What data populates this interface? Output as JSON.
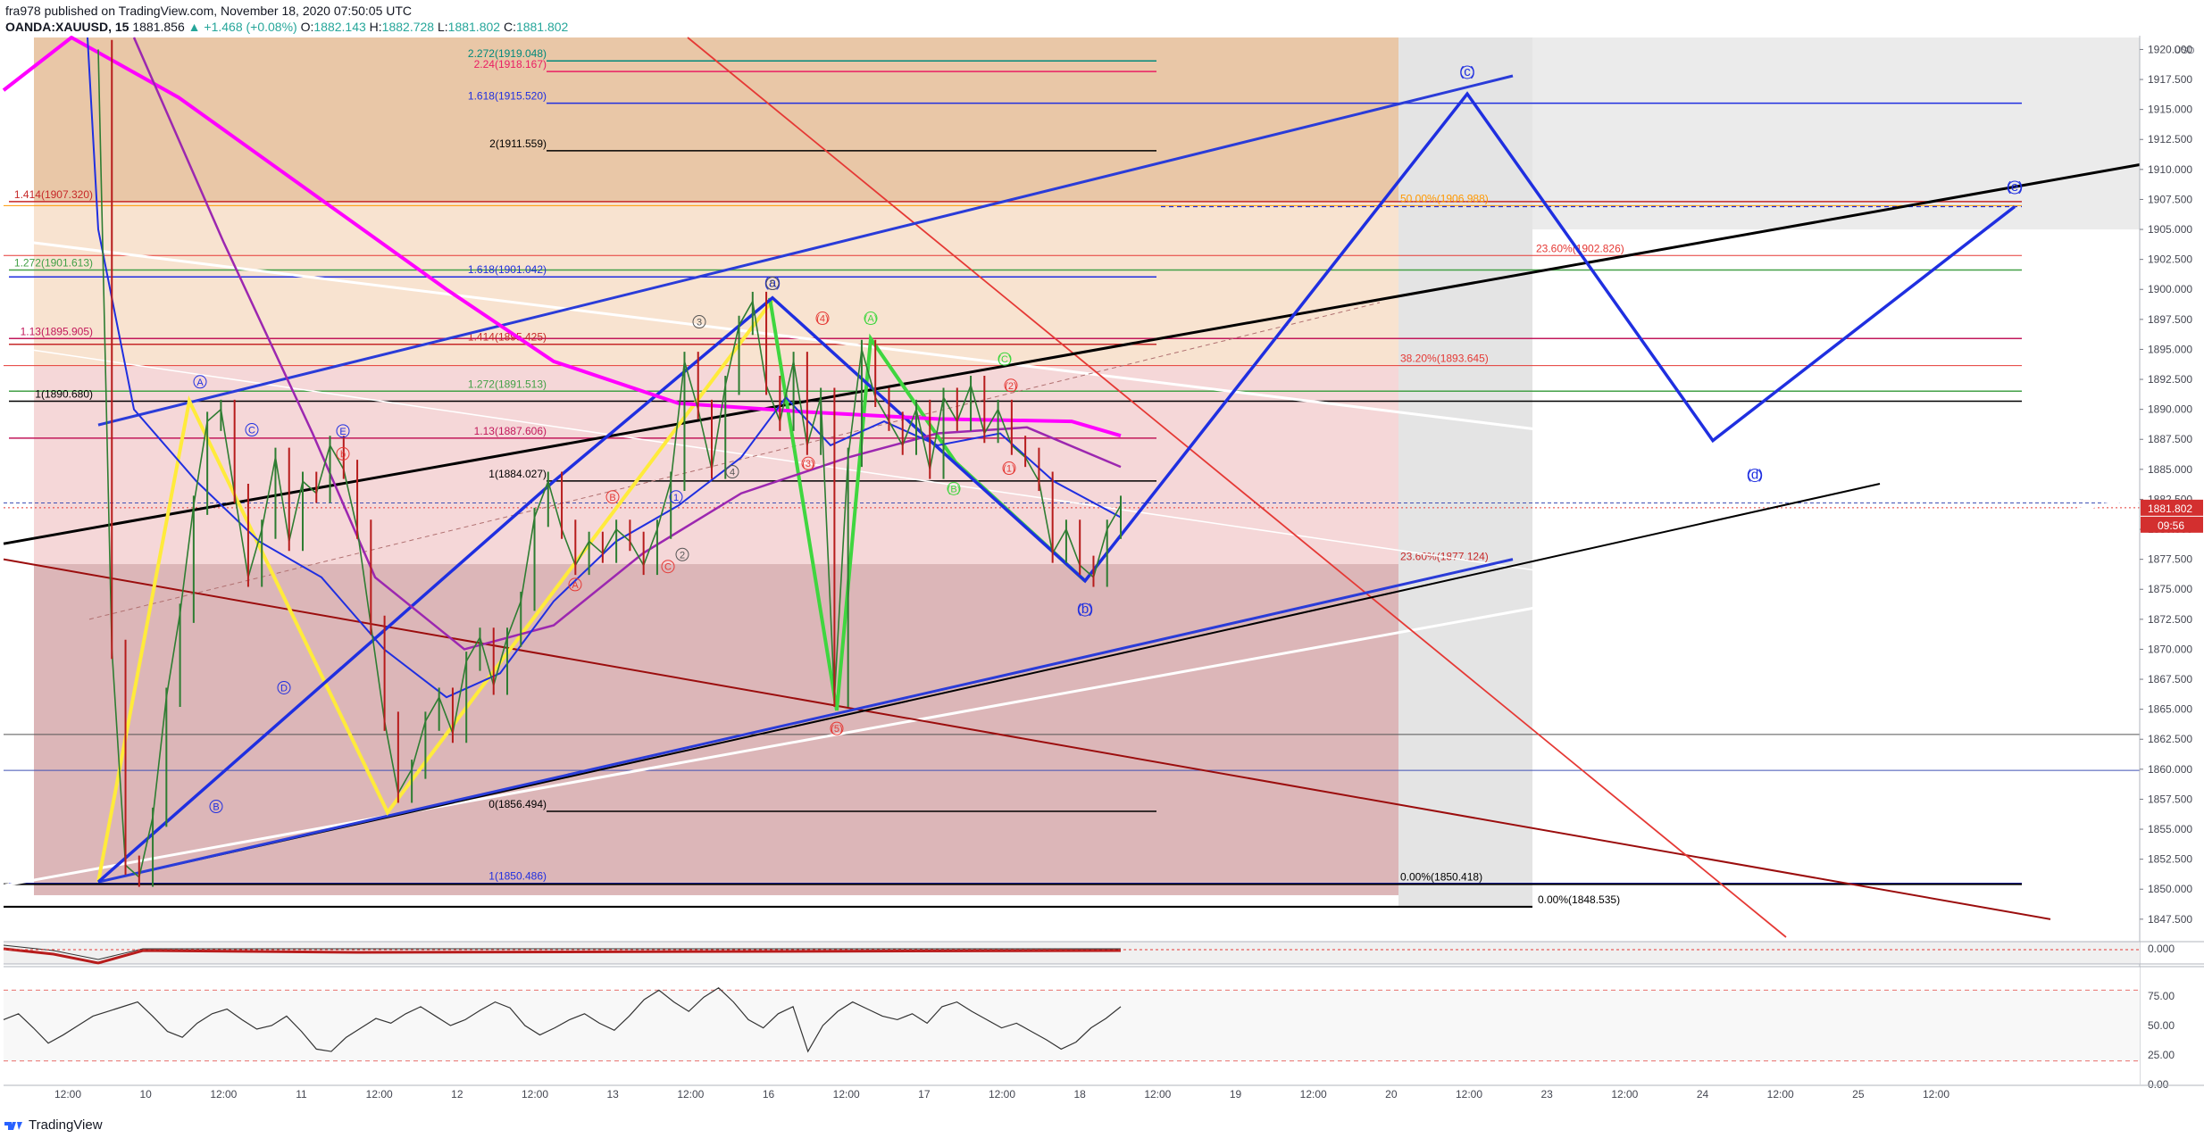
{
  "header": {
    "publisher": "fra978 published on TradingView.com, November 18, 2020 07:50:05 UTC",
    "symbol": "OANDA:XAUUSD, 15",
    "last": "1881.856",
    "change": "▲ +1.468 (+0.08%)",
    "o_label": "O:",
    "o_val": "1882.143",
    "h_label": "H:",
    "h_val": "1882.728",
    "l_label": "L:",
    "l_val": "1881.802",
    "c_label": "C:",
    "c_val": "1881.802"
  },
  "footer": {
    "brand": "TradingView"
  },
  "colors": {
    "blue": "#1f2fe0",
    "red": "#e53935",
    "darkred": "#9b0d0d",
    "magenta": "#ff00ff",
    "purple": "#9c27b0",
    "yellow": "#ffeb3b",
    "green": "#3fd63f",
    "black": "#000000"
  },
  "chart_data": [
    {
      "type": "line",
      "panel": "price",
      "y_axis_unit": "USD",
      "ylim": [
        1846.0,
        1921.0
      ],
      "y_ticks": [
        1847.5,
        1850.0,
        1852.5,
        1855.0,
        1857.5,
        1860.0,
        1862.5,
        1865.0,
        1867.5,
        1870.0,
        1872.5,
        1875.0,
        1877.5,
        1880.0,
        1882.5,
        1885.0,
        1887.5,
        1890.0,
        1892.5,
        1895.0,
        1897.5,
        1900.0,
        1902.5,
        1905.0,
        1907.5,
        1910.0,
        1912.5,
        1915.0,
        1917.5,
        1920.0
      ],
      "y_tick_labels": [
        "1847.500",
        "1850.000",
        "1852.500",
        "1855.000",
        "1857.500",
        "1860.000",
        "1862.500",
        "1865.000",
        "1867.500",
        "1870.000",
        "1872.500",
        "1875.000",
        "1877.500",
        "1880.000",
        "1882.500",
        "1885.000",
        "1887.500",
        "1890.000",
        "1892.500",
        "1895.000",
        "1897.500",
        "1900.000",
        "1902.500",
        "1905.000",
        "1907.500",
        "1910.000",
        "1912.500",
        "1915.000",
        "1917.500",
        "1920.000"
      ],
      "x_tick_labels": [
        "12:00",
        "10",
        "12:00",
        "11",
        "12:00",
        "12",
        "12:00",
        "13",
        "12:00",
        "16",
        "12:00",
        "17",
        "12:00",
        "18",
        "12:00",
        "19",
        "12:00",
        "20",
        "12:00",
        "23",
        "12:00",
        "24",
        "12:00",
        "25",
        "12:00"
      ],
      "price_label": "1881.802",
      "countdown_label": "09:56",
      "price_path": [
        [
          0,
          1920
        ],
        [
          1,
          1870
        ],
        [
          2,
          1852
        ],
        [
          3,
          1851
        ],
        [
          4,
          1856
        ],
        [
          5,
          1866
        ],
        [
          6,
          1873
        ],
        [
          7,
          1882
        ],
        [
          8,
          1889
        ],
        [
          9,
          1890
        ],
        [
          10,
          1883
        ],
        [
          11,
          1876
        ],
        [
          12,
          1880
        ],
        [
          13,
          1886
        ],
        [
          14,
          1879
        ],
        [
          15,
          1884
        ],
        [
          16,
          1883
        ],
        [
          17,
          1887
        ],
        [
          18,
          1885
        ],
        [
          19,
          1880
        ],
        [
          20,
          1872
        ],
        [
          21,
          1864
        ],
        [
          22,
          1858
        ],
        [
          23,
          1860
        ],
        [
          24,
          1864
        ],
        [
          25,
          1866
        ],
        [
          26,
          1863
        ],
        [
          27,
          1869
        ],
        [
          28,
          1871
        ],
        [
          29,
          1867
        ],
        [
          30,
          1871
        ],
        [
          31,
          1874
        ],
        [
          32,
          1881
        ],
        [
          33,
          1884
        ],
        [
          34,
          1880
        ],
        [
          35,
          1877
        ],
        [
          36,
          1879
        ],
        [
          37,
          1878
        ],
        [
          38,
          1880
        ],
        [
          39,
          1879
        ],
        [
          40,
          1877
        ],
        [
          41,
          1880
        ],
        [
          42,
          1884
        ],
        [
          43,
          1894
        ],
        [
          44,
          1890
        ],
        [
          45,
          1885
        ],
        [
          46,
          1892
        ],
        [
          47,
          1897
        ],
        [
          48,
          1899
        ],
        [
          49,
          1892
        ],
        [
          50,
          1889
        ],
        [
          51,
          1894
        ],
        [
          52,
          1887
        ],
        [
          53,
          1891
        ],
        [
          54,
          1866
        ],
        [
          55,
          1886
        ],
        [
          56,
          1895
        ],
        [
          57,
          1891
        ],
        [
          58,
          1889
        ],
        [
          59,
          1887
        ],
        [
          60,
          1890
        ],
        [
          61,
          1885
        ],
        [
          62,
          1891
        ],
        [
          63,
          1889
        ],
        [
          64,
          1892
        ],
        [
          65,
          1888
        ],
        [
          66,
          1890
        ],
        [
          67,
          1887
        ],
        [
          68,
          1886
        ],
        [
          69,
          1884
        ],
        [
          70,
          1878
        ],
        [
          71,
          1880
        ],
        [
          72,
          1877
        ],
        [
          73,
          1876
        ],
        [
          74,
          1880
        ],
        [
          75,
          1882
        ]
      ]
    },
    {
      "type": "line",
      "panel": "upper-indicator",
      "y_tick_labels": [
        "0.000"
      ]
    },
    {
      "type": "line",
      "panel": "rsi",
      "ylim": [
        0,
        100
      ],
      "y_ticks": [
        0,
        25,
        50,
        75
      ],
      "y_tick_labels": [
        "0.00",
        "25.00",
        "50.00",
        "75.00"
      ],
      "bands": [
        80,
        20
      ],
      "values": [
        55,
        60,
        48,
        35,
        42,
        50,
        58,
        62,
        66,
        70,
        58,
        45,
        40,
        52,
        60,
        64,
        55,
        47,
        50,
        58,
        45,
        30,
        28,
        40,
        48,
        56,
        52,
        60,
        66,
        58,
        50,
        55,
        63,
        70,
        65,
        50,
        42,
        48,
        55,
        60,
        52,
        46,
        58,
        72,
        80,
        70,
        62,
        74,
        82,
        70,
        55,
        48,
        60,
        66,
        28,
        50,
        62,
        70,
        64,
        58,
        55,
        60,
        52,
        66,
        70,
        62,
        55,
        48,
        52,
        45,
        38,
        30,
        36,
        48,
        56,
        66
      ]
    }
  ],
  "fib_left": [
    {
      "label": "2.272(1919.048)",
      "price": 1919.048,
      "color": "#00897b"
    },
    {
      "label": "2.24(1918.167)",
      "price": 1918.167,
      "color": "#e91e63"
    },
    {
      "label": "1.618(1915.520)",
      "price": 1915.52,
      "color": "#1f2fe0"
    },
    {
      "label": "2(1911.559)",
      "price": 1911.559,
      "color": "#000000"
    },
    {
      "label": "1.414(1907.320)",
      "price": 1907.32,
      "color": "#c62828"
    },
    {
      "label": "1.272(1901.613)",
      "price": 1901.613,
      "color": "#43a047"
    },
    {
      "label": "1.618(1901.042)",
      "price": 1901.042,
      "color": "#1f2fe0"
    },
    {
      "label": "1.13(1895.905)",
      "price": 1895.905,
      "color": "#c2185b"
    },
    {
      "label": "1.414(1895.425)",
      "price": 1895.425,
      "color": "#c62828"
    },
    {
      "label": "1.272(1891.513)",
      "price": 1891.513,
      "color": "#43a047"
    },
    {
      "label": "1(1890.680)",
      "price": 1890.68,
      "color": "#000000"
    },
    {
      "label": "1.13(1887.606)",
      "price": 1887.606,
      "color": "#c2185b"
    },
    {
      "label": "1(1884.027)",
      "price": 1884.027,
      "color": "#000000"
    },
    {
      "label": "0(1856.494)",
      "price": 1856.494,
      "color": "#000000"
    },
    {
      "label": "1(1850.486)",
      "price": 1850.486,
      "color": "#1f2fe0"
    }
  ],
  "fib_right": [
    {
      "label": "50.00%(1906.988)",
      "price": 1906.988,
      "color": "#ff9800"
    },
    {
      "label": "23.60%(1902.826)",
      "price": 1902.826,
      "color": "#e53935"
    },
    {
      "label": "38.20%(1893.645)",
      "price": 1893.645,
      "color": "#e53935"
    },
    {
      "label": "23.60%(1877.124)",
      "price": 1877.124,
      "color": "#c62828"
    },
    {
      "label": "0.00%(1850.418)",
      "price": 1850.418,
      "color": "#000000"
    },
    {
      "label": "0.00%(1848.535)",
      "price": 1848.535,
      "color": "#000000"
    }
  ],
  "wave_labels": [
    {
      "t": "(a)",
      "c": "#1f2fe0"
    },
    {
      "t": "(b)",
      "c": "#1f2fe0"
    },
    {
      "t": "(c)",
      "c": "#1f2fe0"
    },
    {
      "t": "(d)",
      "c": "#1f2fe0"
    },
    {
      "t": "(e)",
      "c": "#1f2fe0"
    },
    {
      "t": "b",
      "c": "#e53935"
    },
    {
      "t": "A",
      "c": "#1f2fe0"
    },
    {
      "t": "C",
      "c": "#1f2fe0"
    },
    {
      "t": "D",
      "c": "#1f2fe0"
    },
    {
      "t": "B",
      "c": "#1f2fe0"
    },
    {
      "t": "E",
      "c": "#1f2fe0"
    },
    {
      "t": "(A)",
      "c": "#3fd63f"
    },
    {
      "t": "(B)",
      "c": "#3fd63f"
    },
    {
      "t": "(C)",
      "c": "#3fd63f"
    },
    {
      "t": "(1)",
      "c": "#e53935"
    },
    {
      "t": "(2)",
      "c": "#e53935"
    },
    {
      "t": "(3)",
      "c": "#e53935"
    },
    {
      "t": "(4)",
      "c": "#e53935"
    },
    {
      "t": "(5)",
      "c": "#e53935"
    },
    {
      "t": "1",
      "c": "#1f2fe0"
    },
    {
      "t": "2",
      "c": "#555555"
    },
    {
      "t": "3",
      "c": "#555555"
    },
    {
      "t": "4",
      "c": "#555555"
    },
    {
      "t": "5",
      "c": "#555555"
    },
    {
      "t": "A",
      "c": "#e53935"
    },
    {
      "t": "B",
      "c": "#e53935"
    },
    {
      "t": "C",
      "c": "#e53935"
    }
  ]
}
